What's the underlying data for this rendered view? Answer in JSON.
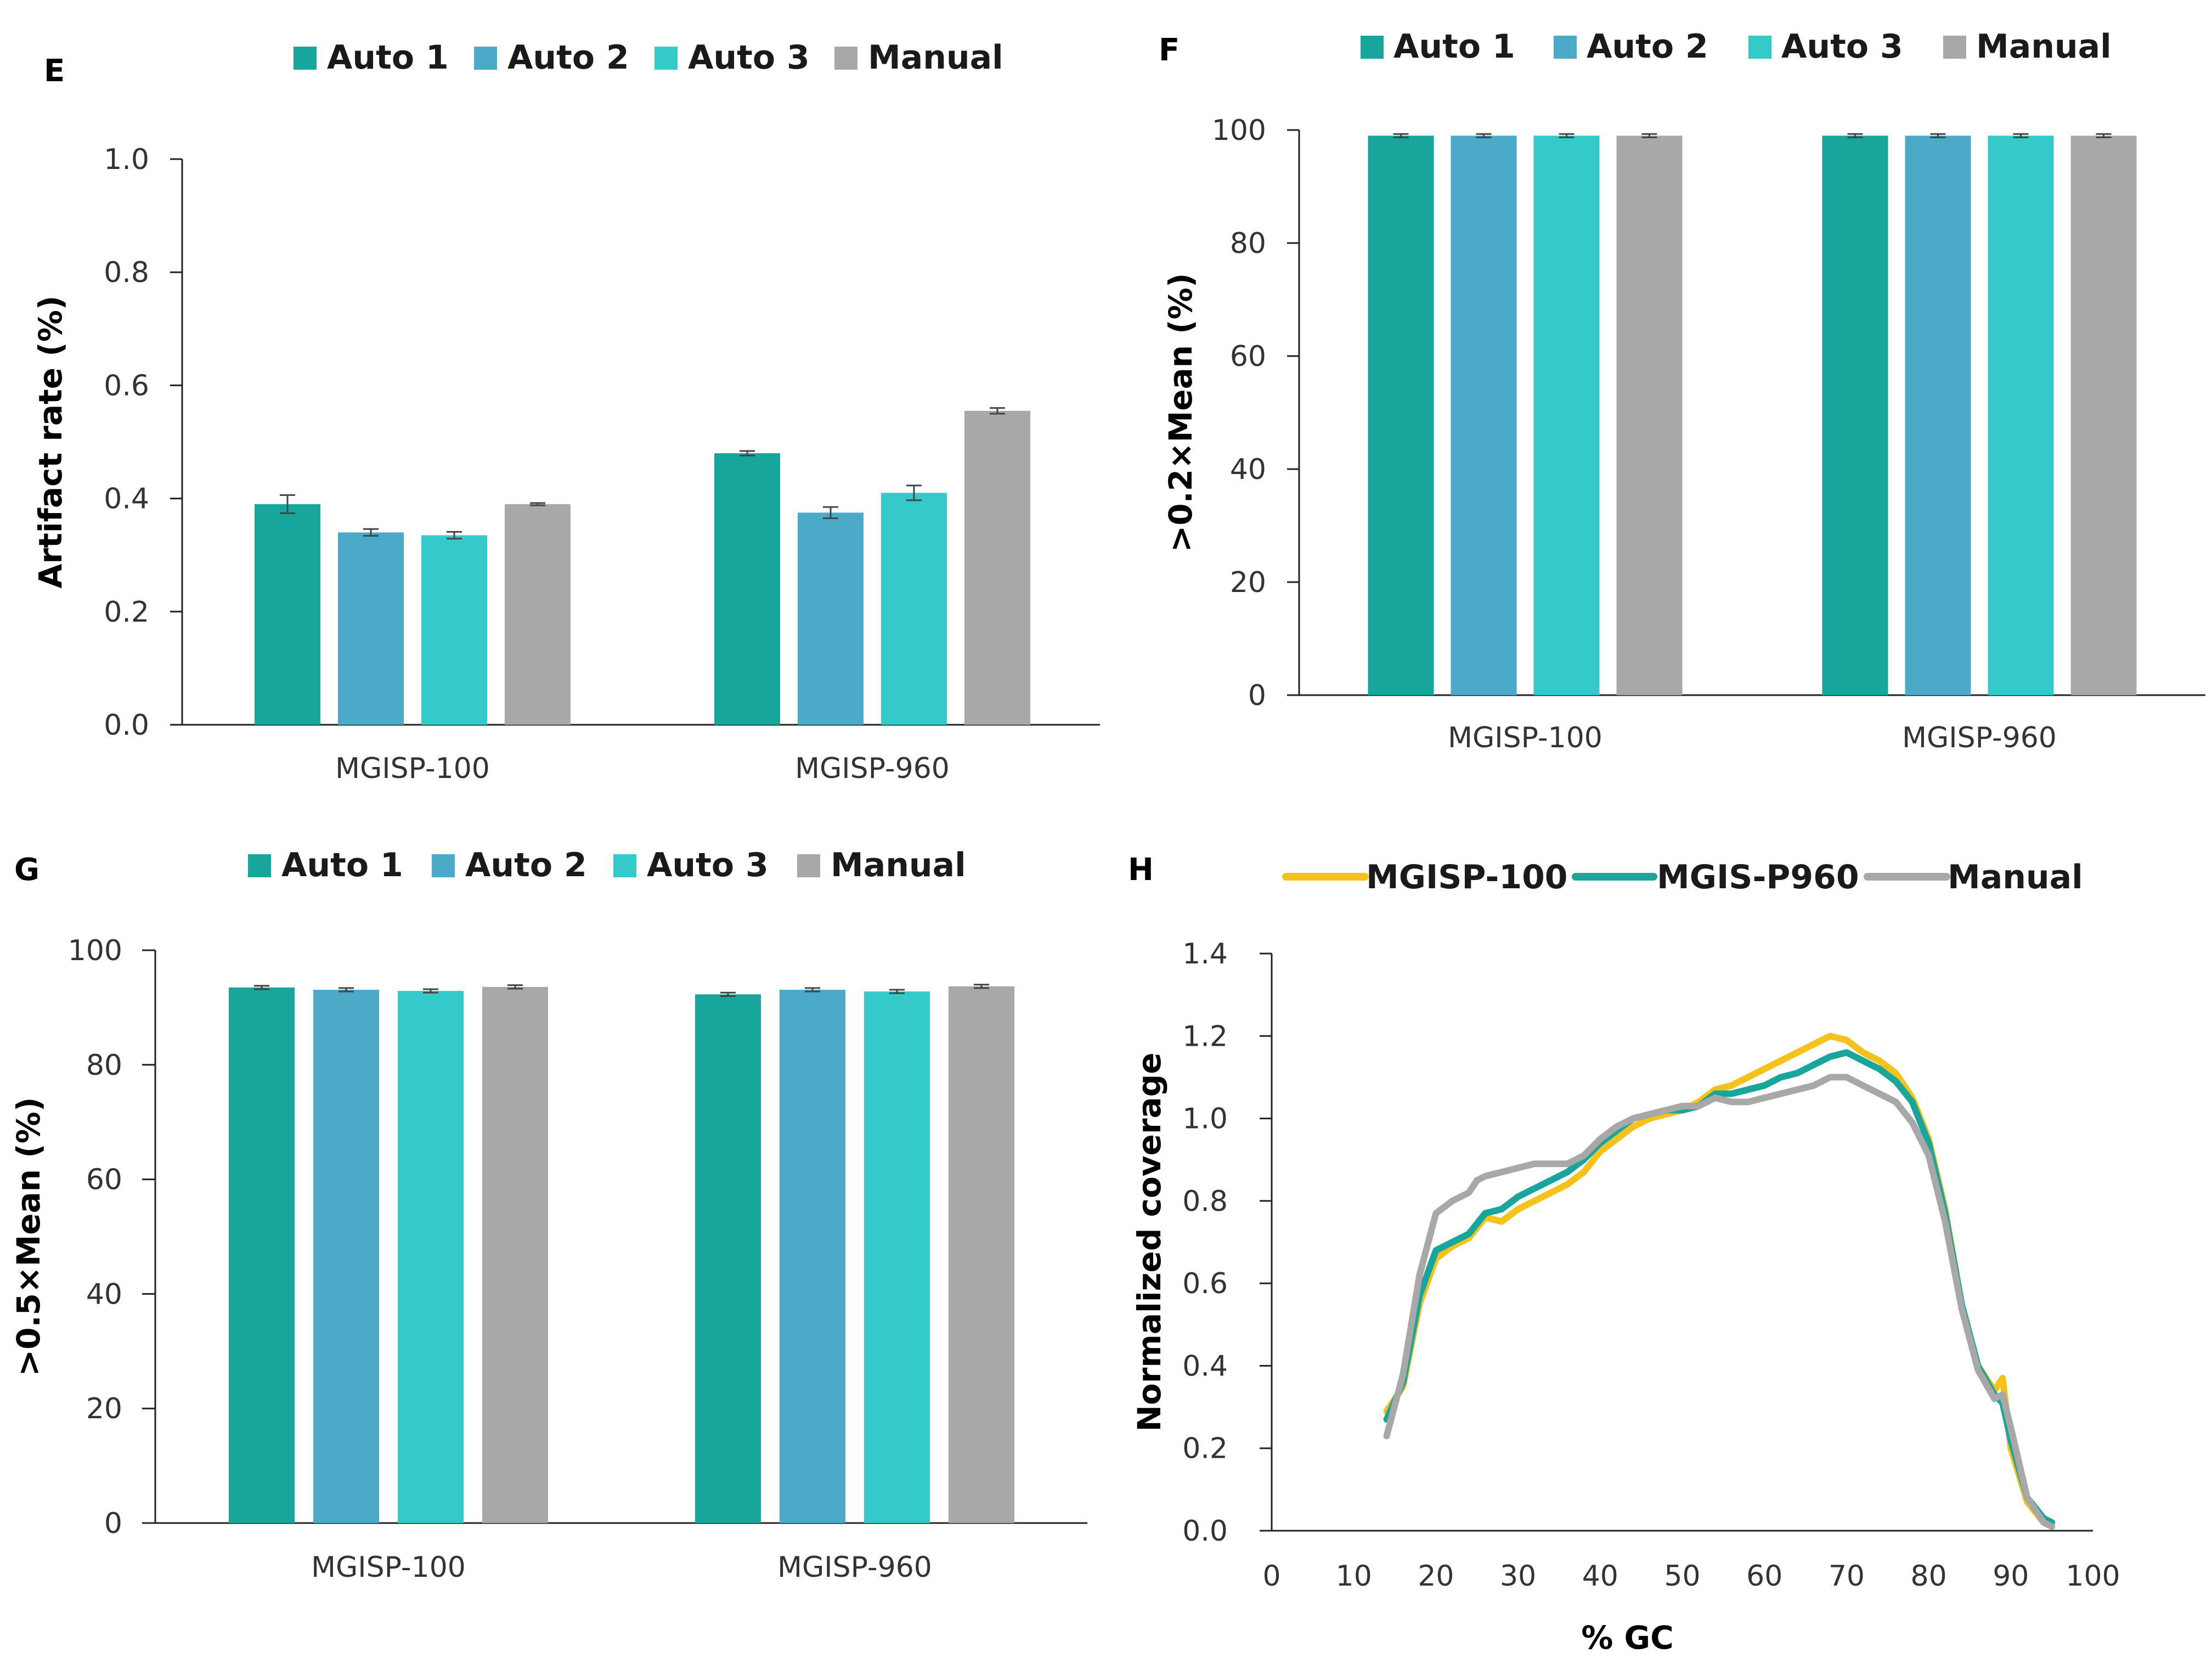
{
  "panel_letters": [
    "E",
    "F",
    "G",
    "H"
  ],
  "colors": {
    "auto1": "#17a59c",
    "auto2": "#4aaac8",
    "auto3": "#33cac9",
    "manual": "#a8a8a8",
    "line_mgisp100": "#f4c21a",
    "line_mgisp960": "#17a59c",
    "line_manual": "#a8a8a8",
    "axis": "#222222"
  },
  "chart_data": [
    {
      "panel": "E",
      "type": "bar",
      "categories": [
        "MGISP-100",
        "MGISP-960"
      ],
      "series": [
        {
          "name": "Auto 1",
          "values": [
            0.39,
            0.48
          ],
          "errors": [
            0.016,
            0.004
          ]
        },
        {
          "name": "Auto 2",
          "values": [
            0.34,
            0.375
          ],
          "errors": [
            0.006,
            0.01
          ]
        },
        {
          "name": "Auto 3",
          "values": [
            0.335,
            0.41
          ],
          "errors": [
            0.006,
            0.013
          ]
        },
        {
          "name": "Manual",
          "values": [
            0.39,
            0.555
          ],
          "errors": [
            0.002,
            0.005
          ]
        }
      ],
      "ylabel": "Artifact rate (%)",
      "ylim": [
        0,
        1.0
      ],
      "yticks": [
        "0.0",
        "0.2",
        "0.4",
        "0.6",
        "0.8",
        "1.0"
      ],
      "legend_position": "top"
    },
    {
      "panel": "F",
      "type": "bar",
      "categories": [
        "MGISP-100",
        "MGISP-960"
      ],
      "series": [
        {
          "name": "Auto 1",
          "values": [
            99,
            99
          ],
          "errors": [
            0.3,
            0.3
          ]
        },
        {
          "name": "Auto 2",
          "values": [
            99,
            99
          ],
          "errors": [
            0.3,
            0.3
          ]
        },
        {
          "name": "Auto 3",
          "values": [
            99,
            99
          ],
          "errors": [
            0.3,
            0.3
          ]
        },
        {
          "name": "Manual",
          "values": [
            99,
            99
          ],
          "errors": [
            0.3,
            0.3
          ]
        }
      ],
      "ylabel": ">0.2×Mean (%)",
      "ylim": [
        0,
        100
      ],
      "yticks": [
        "0",
        "20",
        "40",
        "60",
        "80",
        "100"
      ],
      "legend_position": "top"
    },
    {
      "panel": "G",
      "type": "bar",
      "categories": [
        "MGISP-100",
        "MGISP-960"
      ],
      "series": [
        {
          "name": "Auto 1",
          "values": [
            93.5,
            92.3
          ],
          "errors": [
            0.3,
            0.3
          ]
        },
        {
          "name": "Auto 2",
          "values": [
            93.1,
            93.1
          ],
          "errors": [
            0.3,
            0.3
          ]
        },
        {
          "name": "Auto 3",
          "values": [
            92.9,
            92.8
          ],
          "errors": [
            0.3,
            0.3
          ]
        },
        {
          "name": "Manual",
          "values": [
            93.6,
            93.7
          ],
          "errors": [
            0.3,
            0.3
          ]
        }
      ],
      "ylabel": ">0.5×Mean (%)",
      "ylim": [
        0,
        100
      ],
      "yticks": [
        "0",
        "20",
        "40",
        "60",
        "80",
        "100"
      ],
      "legend_position": "top"
    },
    {
      "panel": "H",
      "type": "line",
      "series": [
        {
          "name": "MGISP-100",
          "x": [
            14,
            16,
            18,
            20,
            22,
            24,
            26,
            28,
            30,
            32,
            34,
            36,
            38,
            40,
            42,
            44,
            46,
            48,
            50,
            52,
            54,
            56,
            58,
            60,
            62,
            64,
            66,
            68,
            70,
            72,
            74,
            76,
            78,
            80,
            82,
            84,
            86,
            88,
            89,
            90,
            92,
            94,
            95
          ],
          "y": [
            0.29,
            0.35,
            0.55,
            0.66,
            0.69,
            0.71,
            0.76,
            0.75,
            0.78,
            0.8,
            0.82,
            0.84,
            0.87,
            0.92,
            0.95,
            0.98,
            1.0,
            1.01,
            1.02,
            1.04,
            1.07,
            1.08,
            1.1,
            1.12,
            1.14,
            1.16,
            1.18,
            1.2,
            1.19,
            1.16,
            1.14,
            1.11,
            1.05,
            0.95,
            0.78,
            0.55,
            0.4,
            0.34,
            0.37,
            0.2,
            0.07,
            0.02,
            0.01
          ]
        },
        {
          "name": "MGIS-P960",
          "x": [
            14,
            16,
            18,
            20,
            22,
            24,
            26,
            28,
            30,
            32,
            34,
            36,
            38,
            40,
            42,
            44,
            46,
            48,
            50,
            52,
            54,
            56,
            58,
            60,
            62,
            64,
            66,
            68,
            70,
            72,
            74,
            76,
            78,
            80,
            82,
            84,
            86,
            88,
            89,
            90,
            92,
            94,
            95
          ],
          "y": [
            0.27,
            0.36,
            0.57,
            0.68,
            0.7,
            0.72,
            0.77,
            0.78,
            0.81,
            0.83,
            0.85,
            0.87,
            0.9,
            0.94,
            0.97,
            1.0,
            1.01,
            1.02,
            1.02,
            1.03,
            1.06,
            1.06,
            1.07,
            1.08,
            1.1,
            1.11,
            1.13,
            1.15,
            1.16,
            1.14,
            1.12,
            1.09,
            1.04,
            0.94,
            0.77,
            0.55,
            0.4,
            0.33,
            0.31,
            0.22,
            0.08,
            0.03,
            0.02
          ]
        },
        {
          "name": "Manual",
          "x": [
            14,
            16,
            18,
            20,
            22,
            24,
            25,
            26,
            28,
            30,
            32,
            34,
            36,
            38,
            40,
            42,
            44,
            46,
            48,
            50,
            52,
            54,
            56,
            58,
            60,
            62,
            64,
            66,
            68,
            70,
            72,
            74,
            76,
            78,
            80,
            82,
            84,
            86,
            88,
            89,
            90,
            92,
            94,
            95
          ],
          "y": [
            0.23,
            0.38,
            0.62,
            0.77,
            0.8,
            0.82,
            0.85,
            0.86,
            0.87,
            0.88,
            0.89,
            0.89,
            0.89,
            0.91,
            0.95,
            0.98,
            1.0,
            1.01,
            1.02,
            1.03,
            1.03,
            1.05,
            1.04,
            1.04,
            1.05,
            1.06,
            1.07,
            1.08,
            1.1,
            1.1,
            1.08,
            1.06,
            1.04,
            0.99,
            0.91,
            0.75,
            0.54,
            0.39,
            0.32,
            0.33,
            0.25,
            0.08,
            0.02,
            0.01
          ]
        }
      ],
      "xlabel": "% GC",
      "ylabel": "Normalized coverage",
      "xlim": [
        0,
        100
      ],
      "ylim": [
        0,
        1.4
      ],
      "xticks": [
        "0",
        "10",
        "20",
        "30",
        "40",
        "50",
        "60",
        "70",
        "80",
        "90",
        "100"
      ],
      "yticks": [
        "0.0",
        "0.2",
        "0.4",
        "0.6",
        "0.8",
        "1.0",
        "1.2",
        "1.4"
      ],
      "legend_position": "top"
    }
  ]
}
